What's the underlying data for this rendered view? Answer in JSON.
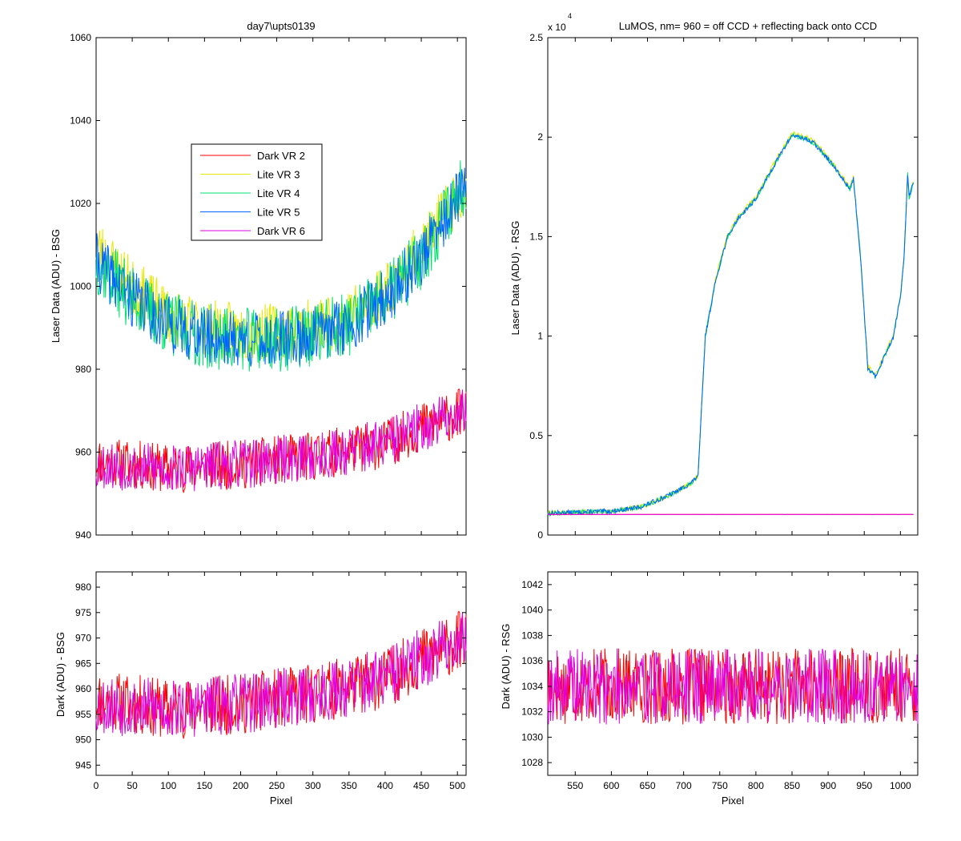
{
  "figure": {
    "background": "#ffffff"
  },
  "chart_data": [
    {
      "id": "tl",
      "type": "line",
      "title": "day7\\upts0139",
      "xlabel": "",
      "ylabel": "Laser Data (ADU) - BSG",
      "xlim": [
        0,
        512
      ],
      "ylim": [
        940,
        1060
      ],
      "xticks": [
        0,
        50,
        100,
        150,
        200,
        250,
        300,
        350,
        400,
        450,
        500
      ],
      "xtick_labels": [],
      "yticks": [
        940,
        960,
        980,
        1000,
        1020,
        1040,
        1060
      ],
      "ytick_labels": [
        "940",
        "960",
        "980",
        "1000",
        "1020",
        "1040",
        "1060"
      ],
      "grid": false,
      "legend": {
        "position": "upper-center"
      },
      "series": [
        {
          "name": "Dark VR 2",
          "color": "#ff0000",
          "baseline": [
            [
              0,
              958
            ],
            [
              100,
              956
            ],
            [
              200,
              957
            ],
            [
              300,
              959
            ],
            [
              400,
              962
            ],
            [
              450,
              966
            ],
            [
              512,
              970
            ]
          ],
          "amplitude": 6,
          "seed": 11
        },
        {
          "name": "Lite VR 3",
          "color": "#e8e800",
          "baseline": [
            [
              0,
              1010
            ],
            [
              50,
              1000
            ],
            [
              100,
              993
            ],
            [
              150,
              990
            ],
            [
              200,
              989
            ],
            [
              250,
              989
            ],
            [
              300,
              990
            ],
            [
              350,
              993
            ],
            [
              400,
              999
            ],
            [
              450,
              1009
            ],
            [
              512,
              1025
            ]
          ],
          "amplitude": 7,
          "seed": 23
        },
        {
          "name": "Lite VR 4",
          "color": "#00e070",
          "baseline": [
            [
              0,
              1006
            ],
            [
              50,
              997
            ],
            [
              100,
              991
            ],
            [
              150,
              988
            ],
            [
              200,
              987
            ],
            [
              250,
              987
            ],
            [
              300,
              988
            ],
            [
              350,
              991
            ],
            [
              400,
              997
            ],
            [
              450,
              1007
            ],
            [
              512,
              1026
            ]
          ],
          "amplitude": 8,
          "seed": 37
        },
        {
          "name": "Lite VR 5",
          "color": "#0064ff",
          "baseline": [
            [
              0,
              1006
            ],
            [
              50,
              997
            ],
            [
              100,
              991
            ],
            [
              150,
              988
            ],
            [
              200,
              987
            ],
            [
              250,
              987
            ],
            [
              300,
              988
            ],
            [
              350,
              991
            ],
            [
              400,
              997
            ],
            [
              450,
              1007
            ],
            [
              512,
              1024
            ]
          ],
          "amplitude": 7,
          "seed": 41
        },
        {
          "name": "Dark VR 6",
          "color": "#e000e0",
          "baseline": [
            [
              0,
              957
            ],
            [
              100,
              956
            ],
            [
              200,
              957
            ],
            [
              300,
              959
            ],
            [
              400,
              962
            ],
            [
              450,
              966
            ],
            [
              512,
              970
            ]
          ],
          "amplitude": 6,
          "seed": 53
        }
      ]
    },
    {
      "id": "tr",
      "type": "line",
      "title": "LuMOS, nm= 960 = off CCD + reflecting back onto CCD",
      "xlabel": "",
      "ylabel": "Laser Data (ADU) - RSG",
      "exponent_label": "x 10",
      "exponent_power": "4",
      "xlim": [
        512,
        1024
      ],
      "ylim": [
        0,
        25000
      ],
      "xticks": [
        550,
        600,
        650,
        700,
        750,
        800,
        850,
        900,
        950,
        1000
      ],
      "xtick_labels": [],
      "yticks": [
        0,
        5000,
        10000,
        15000,
        20000,
        25000
      ],
      "ytick_labels": [
        "0",
        "0.5",
        "1",
        "1.5",
        "2",
        "2.5"
      ],
      "grid": false,
      "series": [
        {
          "color": "#e8e800",
          "baseline": [
            [
              512,
              1100
            ],
            [
              600,
              1200
            ],
            [
              640,
              1400
            ],
            [
              680,
              2000
            ],
            [
              710,
              2600
            ],
            [
              720,
              3000
            ],
            [
              730,
              10000
            ],
            [
              745,
              13000
            ],
            [
              760,
              15000
            ],
            [
              775,
              16000
            ],
            [
              800,
              17000
            ],
            [
              830,
              19000
            ],
            [
              850,
              20200
            ],
            [
              870,
              20000
            ],
            [
              880,
              19800
            ],
            [
              900,
              19000
            ],
            [
              920,
              18000
            ],
            [
              930,
              17500
            ],
            [
              935,
              18000
            ],
            [
              945,
              14000
            ],
            [
              955,
              8500
            ],
            [
              965,
              8000
            ],
            [
              990,
              10000
            ],
            [
              1000,
              12000
            ],
            [
              1005,
              14000
            ],
            [
              1010,
              18200
            ],
            [
              1012,
              17000
            ],
            [
              1018,
              17800
            ]
          ],
          "amplitude": 120,
          "seed": 7
        },
        {
          "color": "#00e070",
          "baseline": [
            [
              512,
              1100
            ],
            [
              600,
              1200
            ],
            [
              640,
              1400
            ],
            [
              680,
              2000
            ],
            [
              710,
              2600
            ],
            [
              720,
              3000
            ],
            [
              730,
              10000
            ],
            [
              745,
              12900
            ],
            [
              760,
              14900
            ],
            [
              775,
              15900
            ],
            [
              800,
              16900
            ],
            [
              830,
              18900
            ],
            [
              850,
              20100
            ],
            [
              870,
              19900
            ],
            [
              880,
              19700
            ],
            [
              900,
              18900
            ],
            [
              920,
              17900
            ],
            [
              930,
              17400
            ],
            [
              935,
              17900
            ],
            [
              945,
              13900
            ],
            [
              955,
              8400
            ],
            [
              965,
              7950
            ],
            [
              990,
              9950
            ],
            [
              1000,
              11950
            ],
            [
              1005,
              13950
            ],
            [
              1010,
              18150
            ],
            [
              1012,
              16950
            ],
            [
              1018,
              17750
            ]
          ],
          "amplitude": 120,
          "seed": 9
        },
        {
          "color": "#0064ff",
          "baseline": [
            [
              512,
              1100
            ],
            [
              600,
              1200
            ],
            [
              640,
              1400
            ],
            [
              680,
              2000
            ],
            [
              710,
              2600
            ],
            [
              720,
              3000
            ],
            [
              730,
              10000
            ],
            [
              745,
              12900
            ],
            [
              760,
              14900
            ],
            [
              775,
              15900
            ],
            [
              800,
              16900
            ],
            [
              830,
              18900
            ],
            [
              850,
              20100
            ],
            [
              870,
              19900
            ],
            [
              880,
              19700
            ],
            [
              900,
              18900
            ],
            [
              920,
              17900
            ],
            [
              930,
              17400
            ],
            [
              935,
              17900
            ],
            [
              945,
              13900
            ],
            [
              955,
              8400
            ],
            [
              965,
              7950
            ],
            [
              990,
              9950
            ],
            [
              1000,
              11950
            ],
            [
              1005,
              13950
            ],
            [
              1010,
              18150
            ],
            [
              1012,
              16950
            ],
            [
              1018,
              17750
            ]
          ],
          "amplitude": 120,
          "seed": 13
        },
        {
          "color": "#ff0000",
          "baseline": [
            [
              512,
              1034
            ],
            [
              1024,
              1034
            ]
          ],
          "amplitude": 3,
          "seed": 17
        },
        {
          "color": "#e000e0",
          "baseline": [
            [
              512,
              1034
            ],
            [
              1024,
              1034
            ]
          ],
          "amplitude": 3,
          "seed": 19
        }
      ]
    },
    {
      "id": "bl",
      "type": "line",
      "title": "",
      "xlabel": "Pixel",
      "ylabel": "Dark (ADU) - BSG",
      "xlim": [
        0,
        512
      ],
      "ylim": [
        943,
        983
      ],
      "xticks": [
        0,
        50,
        100,
        150,
        200,
        250,
        300,
        350,
        400,
        450,
        500
      ],
      "xtick_labels": [
        "0",
        "50",
        "100",
        "150",
        "200",
        "250",
        "300",
        "350",
        "400",
        "450",
        "500"
      ],
      "yticks": [
        945,
        950,
        955,
        960,
        965,
        970,
        975,
        980
      ],
      "ytick_labels": [
        "945",
        "950",
        "955",
        "960",
        "965",
        "970",
        "975",
        "980"
      ],
      "grid": false,
      "series": [
        {
          "color": "#ff0000",
          "baseline": [
            [
              0,
              958
            ],
            [
              100,
              956
            ],
            [
              200,
              957
            ],
            [
              300,
              959
            ],
            [
              400,
              962
            ],
            [
              450,
              966
            ],
            [
              512,
              970
            ]
          ],
          "amplitude": 6,
          "seed": 11
        },
        {
          "color": "#e000e0",
          "baseline": [
            [
              0,
              957
            ],
            [
              100,
              956
            ],
            [
              200,
              957
            ],
            [
              300,
              959
            ],
            [
              400,
              962
            ],
            [
              450,
              966
            ],
            [
              512,
              970
            ]
          ],
          "amplitude": 6,
          "seed": 53
        }
      ]
    },
    {
      "id": "br",
      "type": "line",
      "title": "",
      "xlabel": "Pixel",
      "ylabel": "Dark (ADU) - RSG",
      "xlim": [
        512,
        1024
      ],
      "ylim": [
        1027,
        1043
      ],
      "xticks": [
        550,
        600,
        650,
        700,
        750,
        800,
        850,
        900,
        950,
        1000
      ],
      "xtick_labels": [
        "550",
        "600",
        "650",
        "700",
        "750",
        "800",
        "850",
        "900",
        "950",
        "1000"
      ],
      "yticks": [
        1028,
        1030,
        1032,
        1034,
        1036,
        1038,
        1040,
        1042
      ],
      "ytick_labels": [
        "1028",
        "1030",
        "1032",
        "1034",
        "1036",
        "1038",
        "1040",
        "1042"
      ],
      "grid": false,
      "series": [
        {
          "color": "#ff0000",
          "baseline": [
            [
              512,
              1034
            ],
            [
              1024,
              1034
            ]
          ],
          "amplitude": 3,
          "seed": 17
        },
        {
          "color": "#e000e0",
          "baseline": [
            [
              512,
              1034
            ],
            [
              1024,
              1034
            ]
          ],
          "amplitude": 3,
          "seed": 19
        }
      ]
    }
  ]
}
